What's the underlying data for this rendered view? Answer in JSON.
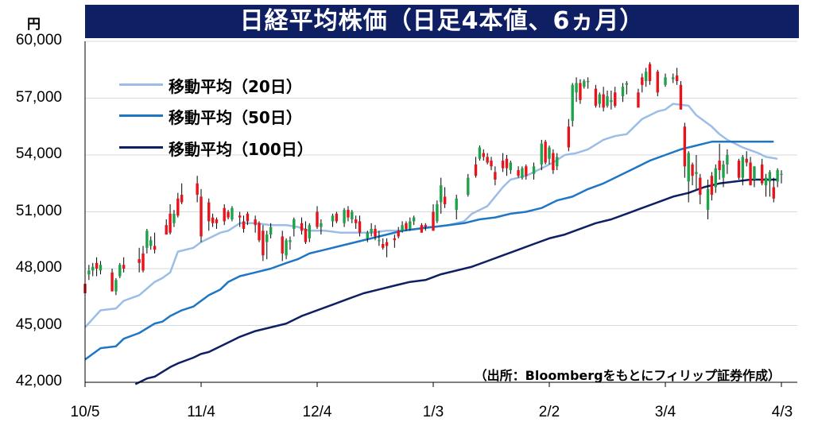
{
  "chart_data": {
    "type": "candlestick",
    "title": "日経平均株価（日足4本値、6ヵ月）",
    "unit": "円",
    "source": "（出所：Bloombergをもとにフィリップ証券作成）",
    "ylim": [
      42000,
      60000
    ],
    "yticks": [
      "42,000",
      "45,000",
      "48,000",
      "51,000",
      "54,000",
      "57,000",
      "60,000"
    ],
    "ytick_values": [
      42000,
      45000,
      48000,
      51000,
      54000,
      57000,
      60000
    ],
    "xticks": [
      "10/5",
      "11/4",
      "12/4",
      "1/3",
      "2/2",
      "3/4",
      "4/3"
    ],
    "xtick_days": [
      0,
      30,
      60,
      90,
      120,
      150,
      180
    ],
    "up_color": "#1fa34a",
    "down_color": "#e8141c",
    "legend": [
      {
        "label": "移動平均（20日）",
        "color": "#9cbde6"
      },
      {
        "label": "移動平均（50日）",
        "color": "#1f77c4"
      },
      {
        "label": "移動平均（100日）",
        "color": "#0e1f63"
      }
    ],
    "ma20": [
      [
        0,
        44900
      ],
      [
        4,
        45800
      ],
      [
        8,
        45900
      ],
      [
        10,
        46300
      ],
      [
        14,
        46600
      ],
      [
        18,
        47300
      ],
      [
        20,
        47500
      ],
      [
        22,
        47800
      ],
      [
        24,
        48900
      ],
      [
        28,
        49100
      ],
      [
        30,
        49400
      ],
      [
        32,
        49600
      ],
      [
        35,
        49900
      ],
      [
        37,
        50000
      ],
      [
        40,
        50400
      ],
      [
        44,
        50400
      ],
      [
        48,
        50300
      ],
      [
        52,
        50300
      ],
      [
        55,
        50200
      ],
      [
        58,
        50000
      ],
      [
        62,
        50000
      ],
      [
        66,
        49900
      ],
      [
        70,
        49900
      ],
      [
        74,
        49900
      ],
      [
        78,
        50000
      ],
      [
        82,
        50000
      ],
      [
        86,
        50100
      ],
      [
        88,
        50200
      ],
      [
        90,
        50200
      ],
      [
        94,
        50300
      ],
      [
        98,
        50500
      ],
      [
        100,
        50900
      ],
      [
        104,
        51300
      ],
      [
        106,
        51800
      ],
      [
        108,
        52300
      ],
      [
        110,
        52700
      ],
      [
        114,
        52900
      ],
      [
        118,
        53300
      ],
      [
        121,
        53600
      ],
      [
        124,
        54000
      ],
      [
        127,
        54100
      ],
      [
        130,
        54300
      ],
      [
        134,
        54800
      ],
      [
        137,
        55000
      ],
      [
        140,
        55100
      ],
      [
        144,
        55900
      ],
      [
        148,
        56300
      ],
      [
        150,
        56400
      ],
      [
        152,
        56700
      ],
      [
        156,
        56600
      ],
      [
        158,
        56100
      ],
      [
        160,
        55800
      ],
      [
        162,
        55500
      ],
      [
        164,
        55100
      ],
      [
        166,
        54800
      ],
      [
        170,
        54400
      ],
      [
        174,
        54100
      ],
      [
        176,
        53900
      ],
      [
        179,
        53800
      ]
    ],
    "ma50": [
      [
        0,
        43200
      ],
      [
        4,
        43800
      ],
      [
        8,
        43900
      ],
      [
        10,
        44300
      ],
      [
        14,
        44600
      ],
      [
        18,
        45100
      ],
      [
        20,
        45200
      ],
      [
        22,
        45500
      ],
      [
        25,
        45800
      ],
      [
        28,
        46000
      ],
      [
        30,
        46300
      ],
      [
        32,
        46600
      ],
      [
        35,
        46900
      ],
      [
        37,
        47300
      ],
      [
        40,
        47600
      ],
      [
        44,
        47800
      ],
      [
        48,
        48000
      ],
      [
        52,
        48300
      ],
      [
        55,
        48500
      ],
      [
        58,
        48800
      ],
      [
        62,
        49000
      ],
      [
        66,
        49200
      ],
      [
        70,
        49400
      ],
      [
        74,
        49600
      ],
      [
        78,
        49800
      ],
      [
        82,
        50000
      ],
      [
        86,
        50100
      ],
      [
        90,
        50200
      ],
      [
        94,
        50300
      ],
      [
        98,
        50400
      ],
      [
        102,
        50600
      ],
      [
        106,
        50700
      ],
      [
        110,
        50900
      ],
      [
        114,
        51000
      ],
      [
        118,
        51200
      ],
      [
        122,
        51600
      ],
      [
        126,
        51800
      ],
      [
        130,
        52200
      ],
      [
        134,
        52500
      ],
      [
        138,
        52900
      ],
      [
        142,
        53300
      ],
      [
        146,
        53700
      ],
      [
        150,
        54000
      ],
      [
        154,
        54300
      ],
      [
        158,
        54500
      ],
      [
        162,
        54700
      ],
      [
        166,
        54700
      ],
      [
        170,
        54700
      ],
      [
        174,
        54700
      ],
      [
        178,
        54700
      ]
    ],
    "ma100": [
      [
        13,
        41900
      ],
      [
        16,
        42200
      ],
      [
        18,
        42300
      ],
      [
        22,
        42800
      ],
      [
        24,
        43000
      ],
      [
        28,
        43300
      ],
      [
        30,
        43500
      ],
      [
        32,
        43600
      ],
      [
        35,
        43900
      ],
      [
        38,
        44200
      ],
      [
        40,
        44400
      ],
      [
        44,
        44700
      ],
      [
        48,
        44900
      ],
      [
        52,
        45100
      ],
      [
        56,
        45500
      ],
      [
        60,
        45800
      ],
      [
        64,
        46100
      ],
      [
        68,
        46400
      ],
      [
        72,
        46700
      ],
      [
        76,
        46900
      ],
      [
        80,
        47100
      ],
      [
        84,
        47300
      ],
      [
        88,
        47400
      ],
      [
        92,
        47700
      ],
      [
        96,
        47900
      ],
      [
        100,
        48100
      ],
      [
        104,
        48400
      ],
      [
        108,
        48700
      ],
      [
        112,
        49000
      ],
      [
        116,
        49300
      ],
      [
        120,
        49600
      ],
      [
        124,
        49800
      ],
      [
        128,
        50100
      ],
      [
        132,
        50400
      ],
      [
        136,
        50600
      ],
      [
        140,
        50900
      ],
      [
        144,
        51200
      ],
      [
        148,
        51500
      ],
      [
        152,
        51800
      ],
      [
        156,
        52000
      ],
      [
        160,
        52300
      ],
      [
        164,
        52500
      ],
      [
        168,
        52600
      ],
      [
        172,
        52700
      ],
      [
        176,
        52700
      ],
      [
        179,
        52700
      ]
    ],
    "candles": [
      [
        0,
        47200,
        48000,
        46700,
        46700
      ],
      [
        1,
        47700,
        48200,
        47400,
        47900
      ],
      [
        2,
        47900,
        48300,
        47600,
        48100
      ],
      [
        3,
        48300,
        48600,
        47600,
        48000
      ],
      [
        4,
        47900,
        48400,
        47700,
        48200
      ],
      [
        7,
        47800,
        48000,
        46800,
        46800
      ],
      [
        8,
        46800,
        47500,
        46600,
        47400
      ],
      [
        9,
        47600,
        48300,
        47500,
        48200
      ],
      [
        10,
        48200,
        48600,
        47800,
        48000
      ],
      [
        14,
        48500,
        49100,
        47800,
        48300
      ],
      [
        15,
        48800,
        49200,
        47800,
        47900
      ],
      [
        16,
        49100,
        50100,
        48800,
        50000
      ],
      [
        17,
        49200,
        49700,
        49000,
        49500
      ],
      [
        18,
        49200,
        49900,
        48800,
        49000
      ],
      [
        21,
        50300,
        50600,
        49800,
        49800
      ],
      [
        22,
        50900,
        51400,
        49800,
        49900
      ],
      [
        23,
        50400,
        51100,
        50200,
        50900
      ],
      [
        24,
        51700,
        52000,
        50700,
        50800
      ],
      [
        25,
        51900,
        52500,
        51400,
        51500
      ],
      [
        29,
        52500,
        52900,
        51500,
        51900
      ],
      [
        30,
        51800,
        52200,
        49400,
        49700
      ],
      [
        32,
        51500,
        51700,
        50000,
        50500
      ],
      [
        33,
        50700,
        50900,
        50200,
        50400
      ],
      [
        34,
        50600,
        50700,
        50100,
        50400
      ],
      [
        36,
        51200,
        51400,
        50300,
        50500
      ],
      [
        37,
        51000,
        51100,
        50600,
        50700
      ],
      [
        38,
        50600,
        51300,
        50500,
        51200
      ],
      [
        40,
        50800,
        51000,
        50200,
        50700
      ],
      [
        41,
        50500,
        50800,
        49900,
        50100
      ],
      [
        42,
        50900,
        51000,
        50300,
        50500
      ],
      [
        44,
        50600,
        50800,
        49900,
        50300
      ],
      [
        45,
        50400,
        50500,
        49400,
        49500
      ],
      [
        46,
        50000,
        50300,
        48400,
        48700
      ],
      [
        47,
        49400,
        50000,
        48500,
        49800
      ],
      [
        48,
        49800,
        50400,
        49600,
        50200
      ],
      [
        51,
        49700,
        50000,
        48400,
        48800
      ],
      [
        52,
        48700,
        49600,
        48500,
        49500
      ],
      [
        53,
        49400,
        49700,
        49000,
        49500
      ],
      [
        54,
        50100,
        50700,
        49700,
        50600
      ],
      [
        56,
        50400,
        50700,
        49800,
        50000
      ],
      [
        57,
        50100,
        50500,
        49300,
        49400
      ],
      [
        58,
        49600,
        50400,
        49400,
        50300
      ],
      [
        60,
        51000,
        51300,
        50100,
        50200
      ],
      [
        61,
        50200,
        50600,
        49800,
        50400
      ],
      [
        64,
        50500,
        50900,
        50200,
        50800
      ],
      [
        65,
        50900,
        51000,
        50400,
        50500
      ],
      [
        67,
        50400,
        51200,
        50200,
        51100
      ],
      [
        68,
        51100,
        51300,
        50500,
        50700
      ],
      [
        69,
        50600,
        51100,
        50400,
        51000
      ],
      [
        70,
        50600,
        50800,
        50100,
        50400
      ],
      [
        71,
        50500,
        50800,
        49700,
        49900
      ],
      [
        73,
        49600,
        50000,
        49400,
        49900
      ],
      [
        74,
        49900,
        50400,
        49700,
        50100
      ],
      [
        75,
        50100,
        50300,
        49500,
        49700
      ],
      [
        76,
        49500,
        50000,
        49200,
        49500
      ],
      [
        77,
        49300,
        49600,
        49000,
        49100
      ],
      [
        78,
        49400,
        49600,
        48600,
        49200
      ],
      [
        80,
        49600,
        49800,
        49100,
        49500
      ],
      [
        81,
        50000,
        50200,
        49600,
        49700
      ],
      [
        82,
        50000,
        50500,
        49900,
        50300
      ],
      [
        83,
        50400,
        50500,
        50000,
        50100
      ],
      [
        84,
        50100,
        50700,
        50000,
        50500
      ],
      [
        85,
        50500,
        50800,
        50300,
        50700
      ],
      [
        87,
        50300,
        50400,
        49900,
        49900
      ],
      [
        88,
        50300,
        50400,
        50000,
        50200
      ],
      [
        90,
        51000,
        51400,
        50000,
        50000
      ],
      [
        91,
        50500,
        51600,
        50400,
        51400
      ],
      [
        92,
        51500,
        52800,
        50900,
        52400
      ],
      [
        93,
        51800,
        52300,
        51200,
        51400
      ],
      [
        96,
        51100,
        51900,
        50600,
        51700
      ],
      [
        99,
        51900,
        53000,
        51800,
        52800
      ],
      [
        101,
        53500,
        53900,
        52800,
        52900
      ],
      [
        102,
        53800,
        54500,
        53700,
        54400
      ],
      [
        103,
        54100,
        54300,
        53700,
        53900
      ],
      [
        104,
        53900,
        54100,
        53500,
        53600
      ],
      [
        105,
        53700,
        53900,
        53200,
        53400
      ],
      [
        106,
        53100,
        53400,
        52400,
        52700
      ],
      [
        108,
        53700,
        54100,
        53100,
        53300
      ],
      [
        109,
        53800,
        54000,
        52900,
        53300
      ],
      [
        110,
        53200,
        53700,
        53000,
        53600
      ],
      [
        112,
        53200,
        53400,
        52800,
        52900
      ],
      [
        113,
        52800,
        53400,
        52700,
        53300
      ],
      [
        114,
        53400,
        53500,
        52700,
        52900
      ],
      [
        116,
        53000,
        53600,
        52700,
        53400
      ],
      [
        118,
        53500,
        54800,
        53200,
        54600
      ],
      [
        119,
        54700,
        54800,
        53500,
        53600
      ],
      [
        120,
        53800,
        54500,
        53500,
        54400
      ],
      [
        121,
        54100,
        54300,
        53000,
        53200
      ],
      [
        122,
        53400,
        54100,
        53200,
        53900
      ],
      [
        125,
        55500,
        55900,
        54200,
        54400
      ],
      [
        126,
        55800,
        57800,
        55500,
        57700
      ],
      [
        127,
        57300,
        58100,
        56800,
        57800
      ],
      [
        128,
        57800,
        58000,
        56700,
        56900
      ],
      [
        129,
        57600,
        58000,
        57500,
        57900
      ],
      [
        130,
        57900,
        58100,
        57500,
        57900
      ],
      [
        132,
        57500,
        57700,
        56500,
        56600
      ],
      [
        133,
        56700,
        57300,
        56500,
        57200
      ],
      [
        134,
        57200,
        57600,
        56300,
        56500
      ],
      [
        135,
        56600,
        57400,
        56500,
        57100
      ],
      [
        136,
        56800,
        57400,
        56400,
        56900
      ],
      [
        137,
        57300,
        57600,
        56500,
        56600
      ],
      [
        139,
        57100,
        57800,
        56800,
        57600
      ],
      [
        140,
        57700,
        57900,
        57200,
        57800
      ],
      [
        143,
        57300,
        57500,
        56500,
        56500
      ],
      [
        144,
        58100,
        58300,
        57300,
        57700
      ],
      [
        145,
        57900,
        58600,
        57600,
        58400
      ],
      [
        146,
        58800,
        58900,
        57700,
        57900
      ],
      [
        148,
        58400,
        58500,
        57100,
        57300
      ],
      [
        150,
        57700,
        58300,
        57600,
        58100
      ],
      [
        152,
        58000,
        58300,
        57800,
        58100
      ],
      [
        153,
        58200,
        58600,
        57700,
        57900
      ],
      [
        154,
        57700,
        57900,
        56400,
        56400
      ],
      [
        155,
        55500,
        55700,
        52800,
        53400
      ],
      [
        156,
        52600,
        54200,
        51500,
        54100
      ],
      [
        157,
        53500,
        53600,
        52400,
        52900
      ],
      [
        158,
        53000,
        54000,
        52200,
        53100
      ],
      [
        159,
        52800,
        53000,
        51400,
        51900
      ],
      [
        161,
        51100,
        52700,
        50600,
        52200
      ],
      [
        162,
        52900,
        53100,
        51600,
        51900
      ],
      [
        163,
        52300,
        53500,
        52000,
        53300
      ],
      [
        164,
        53700,
        54600,
        52700,
        53200
      ],
      [
        165,
        52800,
        53700,
        52300,
        53500
      ],
      [
        166,
        53500,
        54300,
        53000,
        54000
      ],
      [
        169,
        53700,
        53800,
        52700,
        52800
      ],
      [
        170,
        52800,
        54000,
        52400,
        53900
      ],
      [
        171,
        53800,
        54200,
        53400,
        53600
      ],
      [
        172,
        53600,
        53900,
        52400,
        52400
      ],
      [
        173,
        52700,
        53400,
        52300,
        53400
      ],
      [
        175,
        53500,
        53800,
        52400,
        52500
      ],
      [
        176,
        52400,
        53000,
        51800,
        52800
      ],
      [
        177,
        52600,
        53200,
        51800,
        53100
      ],
      [
        178,
        52300,
        52800,
        51500,
        51700
      ],
      [
        179,
        52600,
        53300,
        52300,
        53200
      ],
      [
        180,
        53000,
        53200,
        52500,
        53000
      ]
    ]
  }
}
